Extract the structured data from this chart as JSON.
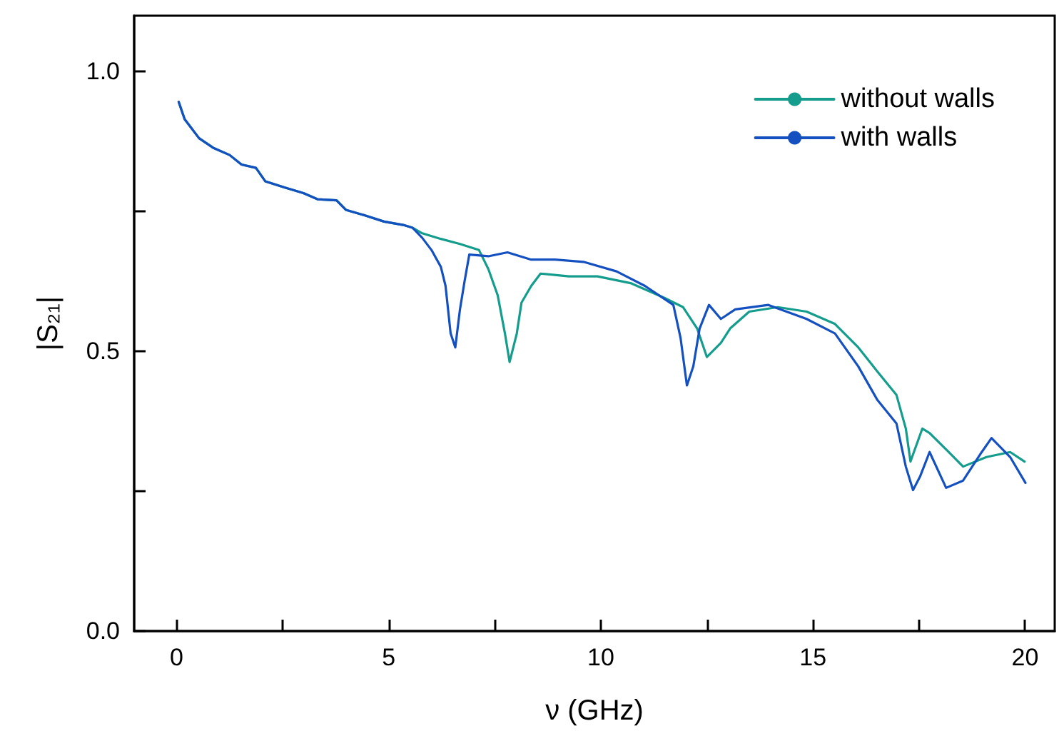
{
  "chart_data": {
    "type": "line",
    "xlabel": "ν (GHz)",
    "ylabel": "|S₂₁|",
    "xlim": [
      -1,
      20.7
    ],
    "ylim": [
      0,
      1.1
    ],
    "xticks": [
      0,
      {
        "value": 2.5,
        "label": null
      },
      5,
      {
        "value": 7.5,
        "label": null
      },
      10,
      {
        "value": 12.5,
        "label": null
      },
      15,
      {
        "value": 17.5,
        "label": null
      },
      20
    ],
    "yticks": [
      {
        "value": 0,
        "label": "0.0"
      },
      {
        "value": 0.25,
        "label": null
      },
      0.5,
      {
        "value": 0.75,
        "label": null
      },
      {
        "value": 1,
        "label": "1.0"
      }
    ],
    "legend": "top right",
    "grid": false,
    "marker": "none",
    "line_style": "solid",
    "series": [
      {
        "name": "without walls",
        "color": "#149c8c",
        "x": [
          0.05,
          0.19,
          0.53,
          0.86,
          1.25,
          1.53,
          1.87,
          2.09,
          2.54,
          2.99,
          3.32,
          3.77,
          3.99,
          4.44,
          4.89,
          5.34,
          5.56,
          5.79,
          6.23,
          6.68,
          7.13,
          7.35,
          7.57,
          7.74,
          7.85,
          8.02,
          8.13,
          8.36,
          8.58,
          9.25,
          9.92,
          10.7,
          11.49,
          11.94,
          12.27,
          12.5,
          12.83,
          13.05,
          13.5,
          14.17,
          14.85,
          15.52,
          16.07,
          16.52,
          16.97,
          17.19,
          17.3,
          17.58,
          17.75,
          18.2,
          18.54,
          19.09,
          19.65,
          19.99
        ],
        "values": [
          0.946,
          0.915,
          0.881,
          0.864,
          0.851,
          0.834,
          0.828,
          0.804,
          0.793,
          0.783,
          0.772,
          0.77,
          0.753,
          0.743,
          0.732,
          0.726,
          0.721,
          0.711,
          0.701,
          0.692,
          0.681,
          0.647,
          0.6,
          0.532,
          0.481,
          0.532,
          0.587,
          0.617,
          0.639,
          0.634,
          0.634,
          0.622,
          0.596,
          0.579,
          0.541,
          0.49,
          0.515,
          0.541,
          0.571,
          0.579,
          0.571,
          0.549,
          0.507,
          0.464,
          0.422,
          0.362,
          0.303,
          0.362,
          0.354,
          0.32,
          0.294,
          0.311,
          0.32,
          0.303
        ]
      },
      {
        "name": "with walls",
        "color": "#1450c0",
        "x": [
          0.05,
          0.19,
          0.53,
          0.86,
          1.25,
          1.53,
          1.87,
          2.09,
          2.54,
          2.99,
          3.32,
          3.77,
          3.99,
          4.44,
          4.89,
          5.34,
          5.56,
          5.79,
          6.01,
          6.23,
          6.34,
          6.46,
          6.57,
          6.68,
          6.79,
          6.9,
          7.35,
          7.8,
          8.36,
          8.92,
          9.59,
          10.37,
          11.04,
          11.71,
          11.88,
          12.03,
          12.18,
          12.33,
          12.55,
          12.83,
          13.17,
          13.95,
          14.85,
          15.52,
          16.07,
          16.52,
          16.97,
          17.19,
          17.36,
          17.53,
          17.75,
          18.14,
          18.54,
          18.98,
          19.21,
          19.65,
          20.01
        ],
        "values": [
          0.946,
          0.915,
          0.881,
          0.864,
          0.851,
          0.834,
          0.828,
          0.804,
          0.793,
          0.783,
          0.772,
          0.77,
          0.753,
          0.743,
          0.732,
          0.726,
          0.721,
          0.703,
          0.681,
          0.651,
          0.617,
          0.532,
          0.507,
          0.575,
          0.626,
          0.673,
          0.67,
          0.677,
          0.664,
          0.664,
          0.66,
          0.643,
          0.617,
          0.583,
          0.524,
          0.439,
          0.473,
          0.541,
          0.583,
          0.558,
          0.575,
          0.583,
          0.558,
          0.532,
          0.473,
          0.413,
          0.371,
          0.294,
          0.252,
          0.277,
          0.32,
          0.256,
          0.269,
          0.32,
          0.345,
          0.311,
          0.265
        ]
      }
    ]
  }
}
